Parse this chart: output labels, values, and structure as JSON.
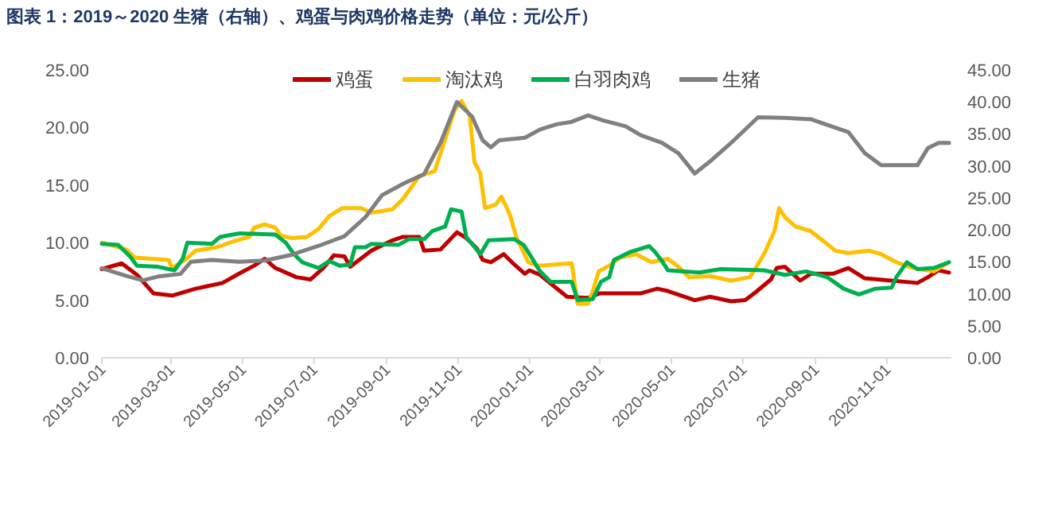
{
  "chart_data": {
    "type": "line",
    "title": "图表 1：2019～2020 生猪（右轴）、鸡蛋与肉鸡价格走势（单位：元/公斤）",
    "xlim": [
      "2019-01-01",
      "2020-12-26"
    ],
    "xticks": [
      "2019-01-01",
      "2019-03-01",
      "2019-05-01",
      "2019-07-01",
      "2019-09-01",
      "2019-11-01",
      "2020-01-01",
      "2020-03-01",
      "2020-05-01",
      "2020-07-01",
      "2020-09-01",
      "2020-11-01"
    ],
    "ylim": [
      0,
      25
    ],
    "yticks": [
      {
        "value": 0,
        "label": "0.00"
      },
      {
        "value": 5,
        "label": "5.00"
      },
      {
        "value": 10,
        "label": "10.00"
      },
      {
        "value": 15,
        "label": "15.00"
      },
      {
        "value": 20,
        "label": "20.00"
      },
      {
        "value": 25,
        "label": "25.00"
      }
    ],
    "y2lim": [
      0,
      45
    ],
    "y2ticks": [
      {
        "value": 0,
        "label": "0.00"
      },
      {
        "value": 5,
        "label": "5.00"
      },
      {
        "value": 10,
        "label": "10.00"
      },
      {
        "value": 15,
        "label": "15.00"
      },
      {
        "value": 20,
        "label": "20.00"
      },
      {
        "value": 25,
        "label": "25.00"
      },
      {
        "value": 30,
        "label": "30.00"
      },
      {
        "value": 35,
        "label": "35.00"
      },
      {
        "value": 40,
        "label": "40.00"
      },
      {
        "value": 45,
        "label": "45.00"
      }
    ],
    "grid": false,
    "legend": "top",
    "series": [
      {
        "name": "鸡蛋",
        "color": "#c00000",
        "x": [
          "2019-01-01",
          "2019-01-18",
          "2019-01-31",
          "2019-02-14",
          "2019-03-02",
          "2019-03-22",
          "2019-04-14",
          "2019-04-28",
          "2019-05-11",
          "2019-05-20",
          "2019-05-29",
          "2019-06-16",
          "2019-06-28",
          "2019-07-09",
          "2019-07-18",
          "2019-07-27",
          "2019-08-01",
          "2019-08-19",
          "2019-09-06",
          "2019-09-15",
          "2019-09-29",
          "2019-10-03",
          "2019-10-17",
          "2019-10-31",
          "2019-11-08",
          "2019-11-17",
          "2019-11-22",
          "2019-11-29",
          "2019-12-10",
          "2019-12-19",
          "2019-12-28",
          "2020-01-01",
          "2020-01-10",
          "2020-02-02",
          "2020-02-20",
          "2020-03-01",
          "2020-04-05",
          "2020-04-19",
          "2020-04-28",
          "2020-05-21",
          "2020-06-03",
          "2020-06-21",
          "2020-07-03",
          "2020-07-12",
          "2020-07-25",
          "2020-07-30",
          "2020-08-06",
          "2020-08-19",
          "2020-08-28",
          "2020-09-16",
          "2020-09-29",
          "2020-10-13",
          "2020-11-05",
          "2020-11-27",
          "2020-12-06",
          "2020-12-15",
          "2020-12-24"
        ],
        "values": [
          7.7,
          8.2,
          7.2,
          5.6,
          5.4,
          6.0,
          6.5,
          7.3,
          8.0,
          8.6,
          7.8,
          7.0,
          6.8,
          7.8,
          8.9,
          8.8,
          7.9,
          9.3,
          10.2,
          10.5,
          10.5,
          9.3,
          9.4,
          10.9,
          10.4,
          9.5,
          8.5,
          8.3,
          9.0,
          8.1,
          7.3,
          7.6,
          7.2,
          5.3,
          5.2,
          5.6,
          5.6,
          6.0,
          5.8,
          5.0,
          5.3,
          4.9,
          5.0,
          5.7,
          6.8,
          7.8,
          7.9,
          6.7,
          7.3,
          7.3,
          7.8,
          6.9,
          6.7,
          6.5,
          7.0,
          7.6,
          7.4
        ]
      },
      {
        "name": "淘汰鸡",
        "color": "#ffc000",
        "x": [
          "2019-01-01",
          "2019-01-22",
          "2019-01-29",
          "2019-02-27",
          "2019-03-02",
          "2019-03-13",
          "2019-03-22",
          "2019-04-09",
          "2019-04-23",
          "2019-05-07",
          "2019-05-11",
          "2019-05-20",
          "2019-05-29",
          "2019-06-03",
          "2019-06-12",
          "2019-06-25",
          "2019-07-05",
          "2019-07-14",
          "2019-07-25",
          "2019-08-10",
          "2019-08-19",
          "2019-09-06",
          "2019-09-15",
          "2019-09-29",
          "2019-10-12",
          "2019-10-21",
          "2019-10-29",
          "2019-11-04",
          "2019-11-11",
          "2019-11-15",
          "2019-11-20",
          "2019-11-24",
          "2019-12-03",
          "2019-12-08",
          "2019-12-15",
          "2019-12-21",
          "2019-12-31",
          "2020-01-08",
          "2020-02-06",
          "2020-02-11",
          "2020-02-20",
          "2020-02-24",
          "2020-02-29",
          "2020-03-09",
          "2020-03-18",
          "2020-04-01",
          "2020-04-14",
          "2020-04-28",
          "2020-05-07",
          "2020-05-16",
          "2020-06-03",
          "2020-06-21",
          "2020-07-07",
          "2020-07-12",
          "2020-07-19",
          "2020-07-28",
          "2020-08-01",
          "2020-08-06",
          "2020-08-15",
          "2020-08-28",
          "2020-09-07",
          "2020-09-18",
          "2020-09-29",
          "2020-10-17",
          "2020-10-27",
          "2020-11-09",
          "2020-11-23",
          "2020-12-11",
          "2020-12-24"
        ],
        "values": [
          10.0,
          9.4,
          8.7,
          8.5,
          7.8,
          8.5,
          9.3,
          9.6,
          10.1,
          10.5,
          11.3,
          11.6,
          11.3,
          10.6,
          10.4,
          10.5,
          11.2,
          12.3,
          13.0,
          13.0,
          12.6,
          12.9,
          13.8,
          15.8,
          16.2,
          19.0,
          21.5,
          22.3,
          21.0,
          17.0,
          16.0,
          13.0,
          13.3,
          14.0,
          12.5,
          10.4,
          8.3,
          8.0,
          8.2,
          4.7,
          4.7,
          5.8,
          7.5,
          8.0,
          8.7,
          9.0,
          8.3,
          8.6,
          7.9,
          7.0,
          7.1,
          6.7,
          7.0,
          7.8,
          9.0,
          11.0,
          13.0,
          12.2,
          11.4,
          11.0,
          10.2,
          9.3,
          9.1,
          9.3,
          9.0,
          8.3,
          7.8,
          7.5,
          8.3
        ]
      },
      {
        "name": "白羽肉鸡",
        "color": "#00b050",
        "x": [
          "2019-01-01",
          "2019-01-15",
          "2019-01-25",
          "2019-01-31",
          "2019-02-18",
          "2019-03-04",
          "2019-03-11",
          "2019-03-15",
          "2019-04-05",
          "2019-04-12",
          "2019-04-23",
          "2019-04-28",
          "2019-05-29",
          "2019-06-07",
          "2019-06-14",
          "2019-06-21",
          "2019-07-05",
          "2019-07-14",
          "2019-07-23",
          "2019-08-01",
          "2019-08-05",
          "2019-08-14",
          "2019-08-19",
          "2019-09-11",
          "2019-09-20",
          "2019-10-03",
          "2019-10-10",
          "2019-10-21",
          "2019-10-26",
          "2019-11-04",
          "2019-11-08",
          "2019-11-20",
          "2019-11-27",
          "2019-12-19",
          "2019-12-27",
          "2020-01-01",
          "2020-01-10",
          "2020-01-19",
          "2020-02-06",
          "2020-02-11",
          "2020-02-24",
          "2020-03-02",
          "2020-03-09",
          "2020-03-13",
          "2020-03-27",
          "2020-04-12",
          "2020-04-17",
          "2020-04-23",
          "2020-04-28",
          "2020-05-12",
          "2020-05-25",
          "2020-06-12",
          "2020-07-19",
          "2020-08-06",
          "2020-08-24",
          "2020-09-11",
          "2020-09-25",
          "2020-10-08",
          "2020-10-22",
          "2020-11-05",
          "2020-11-09",
          "2020-11-18",
          "2020-11-27",
          "2020-12-11",
          "2020-12-24"
        ],
        "values": [
          9.9,
          9.8,
          8.8,
          8.0,
          7.9,
          7.6,
          8.6,
          10.0,
          9.9,
          10.5,
          10.7,
          10.8,
          10.7,
          10.0,
          9.0,
          8.3,
          7.8,
          8.4,
          8.0,
          8.1,
          9.6,
          9.6,
          9.9,
          9.8,
          10.3,
          10.3,
          11.0,
          11.4,
          12.9,
          12.7,
          10.5,
          9.0,
          10.2,
          10.3,
          9.8,
          9.0,
          7.5,
          6.6,
          6.6,
          5.0,
          5.1,
          6.6,
          7.0,
          8.5,
          9.2,
          9.7,
          9.2,
          8.4,
          7.6,
          7.5,
          7.4,
          7.7,
          7.6,
          7.2,
          7.5,
          7.0,
          6.0,
          5.5,
          6.0,
          6.1,
          7.0,
          8.3,
          7.7,
          7.8,
          8.3
        ]
      },
      {
        "name": "生猪",
        "color": "#808080",
        "axis": "y2",
        "x": [
          "2019-01-01",
          "2019-01-22",
          "2019-02-05",
          "2019-02-18",
          "2019-03-09",
          "2019-03-18",
          "2019-04-05",
          "2019-04-28",
          "2019-05-20",
          "2019-06-12",
          "2019-07-05",
          "2019-07-27",
          "2019-08-14",
          "2019-08-28",
          "2019-09-15",
          "2019-10-03",
          "2019-10-17",
          "2019-10-31",
          "2019-11-13",
          "2019-11-22",
          "2019-11-29",
          "2019-12-06",
          "2019-12-28",
          "2020-01-10",
          "2020-01-24",
          "2020-02-06",
          "2020-02-20",
          "2020-03-04",
          "2020-03-23",
          "2020-04-05",
          "2020-04-23",
          "2020-05-07",
          "2020-05-21",
          "2020-06-03",
          "2020-06-21",
          "2020-07-14",
          "2020-08-06",
          "2020-08-28",
          "2020-09-16",
          "2020-09-29",
          "2020-10-13",
          "2020-10-27",
          "2020-11-27",
          "2020-12-06",
          "2020-12-15",
          "2020-12-24"
        ],
        "values": [
          14.0,
          12.8,
          12.1,
          12.7,
          13.1,
          15.0,
          15.3,
          15.0,
          15.2,
          16.1,
          17.5,
          19.0,
          22.0,
          25.4,
          27.2,
          28.7,
          33.6,
          40.0,
          37.7,
          34.0,
          32.9,
          34.0,
          34.4,
          35.7,
          36.5,
          36.9,
          37.9,
          37.1,
          36.2,
          34.8,
          33.6,
          32.0,
          28.8,
          30.7,
          33.6,
          37.6,
          37.5,
          37.3,
          36.1,
          35.3,
          32.0,
          30.1,
          30.1,
          32.8,
          33.6,
          33.6
        ]
      }
    ]
  }
}
